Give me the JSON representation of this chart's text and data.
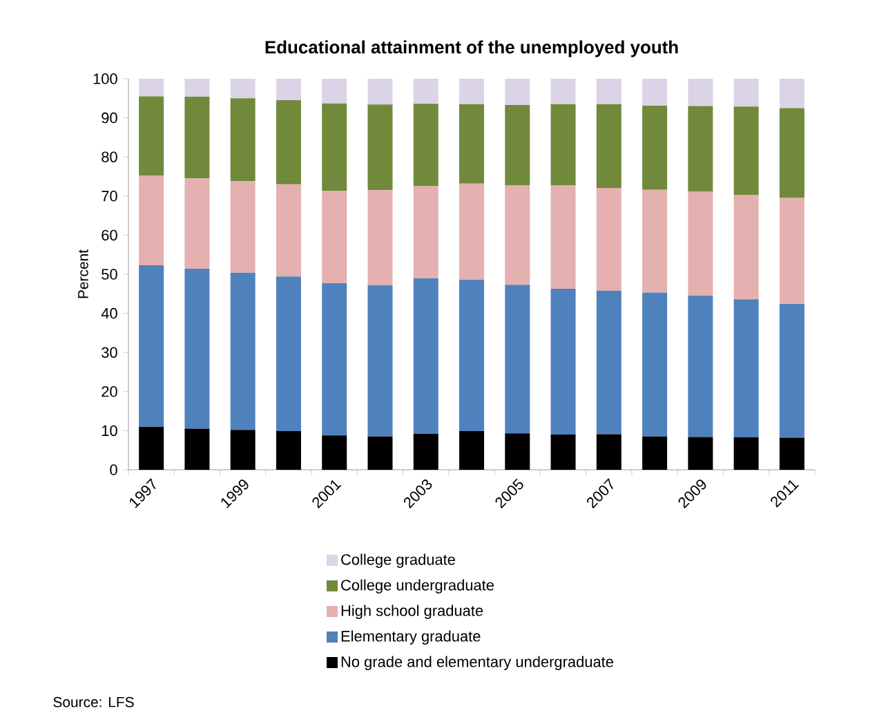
{
  "chart_data": {
    "type": "bar",
    "stacked": true,
    "title": "Educational attainment of the unemployed youth",
    "ylabel": "Percent",
    "categories": [
      "1997",
      null,
      "1999",
      null,
      "2001",
      null,
      "2003",
      null,
      "2005",
      null,
      "2007",
      null,
      "2009",
      null,
      "2011"
    ],
    "series": [
      {
        "name": "No grade and elementary undergraduate",
        "color": "#000000",
        "values": [
          11,
          10.5,
          10.2,
          9.9,
          8.8,
          8.5,
          9.2,
          9.9,
          9.3,
          9.0,
          9.1,
          8.5,
          8.4,
          8.3,
          8.2
        ]
      },
      {
        "name": "Elementary graduate",
        "color": "#4f81bd",
        "values": [
          41.3,
          40.9,
          40.2,
          39.5,
          38.9,
          38.7,
          39.8,
          38.7,
          38.0,
          37.3,
          36.7,
          36.8,
          36.1,
          35.3,
          34.2
        ]
      },
      {
        "name": "High school graduate",
        "color": "#e4b0b0",
        "values": [
          22.9,
          23.1,
          23.4,
          23.6,
          23.6,
          24.3,
          23.5,
          24.6,
          25.5,
          26.4,
          26.3,
          26.3,
          26.6,
          26.7,
          27.1
        ]
      },
      {
        "name": "College undergraduate",
        "color": "#71893a",
        "values": [
          20.3,
          20.9,
          21.2,
          21.5,
          22.4,
          21.9,
          21.1,
          20.3,
          20.5,
          20.8,
          21.4,
          21.5,
          21.9,
          22.6,
          23.0
        ]
      },
      {
        "name": "College graduate",
        "color": "#dbd3e6",
        "values": [
          4.5,
          4.6,
          5.0,
          5.5,
          6.3,
          6.6,
          6.4,
          6.5,
          6.7,
          6.5,
          6.5,
          6.9,
          7.0,
          7.1,
          7.5
        ]
      }
    ],
    "ylim": [
      0,
      100
    ],
    "yticks": [
      0,
      10,
      20,
      30,
      40,
      50,
      60,
      70,
      80,
      90,
      100
    ],
    "legend": "bottom",
    "grid": false,
    "annotations": [
      "Source: LFS"
    ]
  }
}
